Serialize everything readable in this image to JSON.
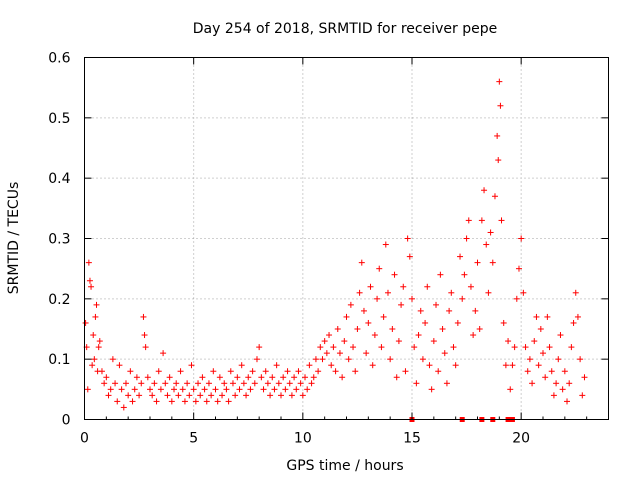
{
  "chart_data": {
    "type": "scatter",
    "title": "Day 254 of 2018, SRMTID for receiver pepe",
    "xlabel": "GPS time / hours",
    "ylabel": "SRMTID / TECUs",
    "xlim": [
      0,
      24
    ],
    "ylim": [
      0,
      0.6
    ],
    "xticks": [
      0,
      5,
      10,
      15,
      20
    ],
    "yticks": [
      0,
      0.1,
      0.2,
      0.3,
      0.4,
      0.5,
      0.6
    ],
    "xtick_labels": [
      "0",
      "5",
      "10",
      "15",
      "20"
    ],
    "ytick_labels": [
      "0",
      "0.1",
      "0.2",
      "0.3",
      "0.4",
      "0.5",
      "0.6"
    ],
    "grid": true,
    "marker": "plus",
    "color": "#ff0000",
    "series": [
      {
        "name": "SRMTID",
        "points": [
          [
            0.05,
            0.16
          ],
          [
            0.1,
            0.12
          ],
          [
            0.15,
            0.05
          ],
          [
            0.2,
            0.26
          ],
          [
            0.25,
            0.23
          ],
          [
            0.3,
            0.22
          ],
          [
            0.35,
            0.09
          ],
          [
            0.4,
            0.14
          ],
          [
            0.45,
            0.1
          ],
          [
            0.5,
            0.17
          ],
          [
            0.55,
            0.19
          ],
          [
            0.6,
            0.08
          ],
          [
            0.65,
            0.12
          ],
          [
            0.7,
            0.13
          ],
          [
            0.8,
            0.08
          ],
          [
            0.9,
            0.06
          ],
          [
            1.0,
            0.07
          ],
          [
            1.1,
            0.04
          ],
          [
            1.2,
            0.05
          ],
          [
            1.3,
            0.1
          ],
          [
            1.4,
            0.06
          ],
          [
            1.5,
            0.03
          ],
          [
            1.6,
            0.09
          ],
          [
            1.7,
            0.05
          ],
          [
            1.8,
            0.02
          ],
          [
            1.9,
            0.06
          ],
          [
            2.0,
            0.04
          ],
          [
            2.1,
            0.08
          ],
          [
            2.2,
            0.03
          ],
          [
            2.3,
            0.05
          ],
          [
            2.4,
            0.07
          ],
          [
            2.5,
            0.04
          ],
          [
            2.6,
            0.06
          ],
          [
            2.7,
            0.17
          ],
          [
            2.75,
            0.14
          ],
          [
            2.8,
            0.12
          ],
          [
            2.9,
            0.07
          ],
          [
            3.0,
            0.05
          ],
          [
            3.1,
            0.04
          ],
          [
            3.2,
            0.06
          ],
          [
            3.3,
            0.03
          ],
          [
            3.4,
            0.08
          ],
          [
            3.5,
            0.05
          ],
          [
            3.6,
            0.11
          ],
          [
            3.7,
            0.06
          ],
          [
            3.8,
            0.04
          ],
          [
            3.9,
            0.07
          ],
          [
            4.0,
            0.03
          ],
          [
            4.1,
            0.05
          ],
          [
            4.2,
            0.06
          ],
          [
            4.3,
            0.04
          ],
          [
            4.4,
            0.08
          ],
          [
            4.5,
            0.05
          ],
          [
            4.6,
            0.03
          ],
          [
            4.7,
            0.06
          ],
          [
            4.8,
            0.04
          ],
          [
            4.9,
            0.09
          ],
          [
            5.0,
            0.05
          ],
          [
            5.1,
            0.03
          ],
          [
            5.2,
            0.06
          ],
          [
            5.3,
            0.04
          ],
          [
            5.4,
            0.07
          ],
          [
            5.5,
            0.05
          ],
          [
            5.6,
            0.03
          ],
          [
            5.7,
            0.06
          ],
          [
            5.8,
            0.04
          ],
          [
            5.9,
            0.08
          ],
          [
            6.0,
            0.05
          ],
          [
            6.1,
            0.03
          ],
          [
            6.2,
            0.07
          ],
          [
            6.3,
            0.04
          ],
          [
            6.4,
            0.06
          ],
          [
            6.5,
            0.05
          ],
          [
            6.6,
            0.03
          ],
          [
            6.7,
            0.08
          ],
          [
            6.8,
            0.06
          ],
          [
            6.9,
            0.04
          ],
          [
            7.0,
            0.07
          ],
          [
            7.1,
            0.05
          ],
          [
            7.2,
            0.09
          ],
          [
            7.3,
            0.06
          ],
          [
            7.4,
            0.04
          ],
          [
            7.5,
            0.07
          ],
          [
            7.6,
            0.05
          ],
          [
            7.7,
            0.08
          ],
          [
            7.8,
            0.06
          ],
          [
            7.9,
            0.1
          ],
          [
            8.0,
            0.12
          ],
          [
            8.1,
            0.07
          ],
          [
            8.2,
            0.05
          ],
          [
            8.3,
            0.08
          ],
          [
            8.4,
            0.06
          ],
          [
            8.5,
            0.04
          ],
          [
            8.6,
            0.07
          ],
          [
            8.7,
            0.05
          ],
          [
            8.8,
            0.09
          ],
          [
            8.9,
            0.06
          ],
          [
            9.0,
            0.04
          ],
          [
            9.1,
            0.07
          ],
          [
            9.2,
            0.05
          ],
          [
            9.3,
            0.08
          ],
          [
            9.4,
            0.06
          ],
          [
            9.5,
            0.04
          ],
          [
            9.6,
            0.07
          ],
          [
            9.7,
            0.05
          ],
          [
            9.8,
            0.08
          ],
          [
            9.9,
            0.06
          ],
          [
            10.0,
            0.04
          ],
          [
            10.1,
            0.07
          ],
          [
            10.2,
            0.05
          ],
          [
            10.3,
            0.09
          ],
          [
            10.4,
            0.06
          ],
          [
            10.5,
            0.07
          ],
          [
            10.6,
            0.1
          ],
          [
            10.7,
            0.08
          ],
          [
            10.8,
            0.12
          ],
          [
            10.9,
            0.1
          ],
          [
            11.0,
            0.13
          ],
          [
            11.1,
            0.11
          ],
          [
            11.2,
            0.14
          ],
          [
            11.3,
            0.09
          ],
          [
            11.4,
            0.12
          ],
          [
            11.5,
            0.08
          ],
          [
            11.6,
            0.15
          ],
          [
            11.7,
            0.11
          ],
          [
            11.8,
            0.07
          ],
          [
            11.9,
            0.13
          ],
          [
            12.0,
            0.17
          ],
          [
            12.1,
            0.1
          ],
          [
            12.2,
            0.19
          ],
          [
            12.3,
            0.12
          ],
          [
            12.4,
            0.08
          ],
          [
            12.5,
            0.15
          ],
          [
            12.6,
            0.21
          ],
          [
            12.7,
            0.26
          ],
          [
            12.8,
            0.18
          ],
          [
            12.9,
            0.11
          ],
          [
            13.0,
            0.16
          ],
          [
            13.1,
            0.22
          ],
          [
            13.2,
            0.09
          ],
          [
            13.3,
            0.14
          ],
          [
            13.4,
            0.2
          ],
          [
            13.5,
            0.25
          ],
          [
            13.6,
            0.12
          ],
          [
            13.7,
            0.17
          ],
          [
            13.8,
            0.29
          ],
          [
            13.9,
            0.21
          ],
          [
            14.0,
            0.1
          ],
          [
            14.1,
            0.15
          ],
          [
            14.2,
            0.24
          ],
          [
            14.3,
            0.07
          ],
          [
            14.4,
            0.13
          ],
          [
            14.5,
            0.19
          ],
          [
            14.6,
            0.22
          ],
          [
            14.7,
            0.08
          ],
          [
            14.8,
            0.3
          ],
          [
            14.9,
            0.27
          ],
          [
            15.0,
            0.2
          ],
          [
            15.1,
            0.12
          ],
          [
            15.2,
            0.06
          ],
          [
            15.3,
            0.14
          ],
          [
            15.4,
            0.18
          ],
          [
            15.5,
            0.1
          ],
          [
            15.6,
            0.16
          ],
          [
            15.7,
            0.22
          ],
          [
            15.8,
            0.09
          ],
          [
            15.9,
            0.05
          ],
          [
            16.0,
            0.13
          ],
          [
            16.1,
            0.19
          ],
          [
            16.2,
            0.08
          ],
          [
            16.3,
            0.24
          ],
          [
            16.4,
            0.15
          ],
          [
            16.5,
            0.11
          ],
          [
            16.6,
            0.06
          ],
          [
            16.7,
            0.18
          ],
          [
            16.8,
            0.21
          ],
          [
            16.9,
            0.12
          ],
          [
            17.0,
            0.09
          ],
          [
            17.1,
            0.16
          ],
          [
            17.2,
            0.27
          ],
          [
            17.3,
            0.2
          ],
          [
            17.4,
            0.24
          ],
          [
            17.5,
            0.3
          ],
          [
            17.6,
            0.33
          ],
          [
            17.7,
            0.22
          ],
          [
            17.8,
            0.14
          ],
          [
            17.9,
            0.18
          ],
          [
            18.0,
            0.26
          ],
          [
            18.1,
            0.15
          ],
          [
            18.2,
            0.33
          ],
          [
            18.3,
            0.38
          ],
          [
            18.4,
            0.29
          ],
          [
            18.5,
            0.21
          ],
          [
            18.6,
            0.31
          ],
          [
            18.7,
            0.26
          ],
          [
            18.8,
            0.37
          ],
          [
            18.9,
            0.47
          ],
          [
            18.95,
            0.43
          ],
          [
            19.0,
            0.56
          ],
          [
            19.05,
            0.52
          ],
          [
            19.1,
            0.33
          ],
          [
            19.2,
            0.16
          ],
          [
            19.3,
            0.09
          ],
          [
            19.4,
            0.13
          ],
          [
            19.5,
            0.05
          ],
          [
            19.6,
            0.09
          ],
          [
            19.7,
            0.12
          ],
          [
            19.8,
            0.2
          ],
          [
            19.9,
            0.25
          ],
          [
            20.0,
            0.3
          ],
          [
            20.1,
            0.21
          ],
          [
            20.2,
            0.12
          ],
          [
            20.3,
            0.08
          ],
          [
            20.4,
            0.1
          ],
          [
            20.5,
            0.06
          ],
          [
            20.6,
            0.13
          ],
          [
            20.7,
            0.17
          ],
          [
            20.8,
            0.09
          ],
          [
            20.9,
            0.15
          ],
          [
            21.0,
            0.11
          ],
          [
            21.1,
            0.07
          ],
          [
            21.2,
            0.17
          ],
          [
            21.3,
            0.12
          ],
          [
            21.4,
            0.08
          ],
          [
            21.5,
            0.04
          ],
          [
            21.6,
            0.06
          ],
          [
            21.7,
            0.1
          ],
          [
            21.8,
            0.14
          ],
          [
            21.9,
            0.05
          ],
          [
            22.0,
            0.08
          ],
          [
            22.1,
            0.03
          ],
          [
            22.2,
            0.06
          ],
          [
            22.3,
            0.12
          ],
          [
            22.4,
            0.16
          ],
          [
            22.5,
            0.21
          ],
          [
            22.6,
            0.17
          ],
          [
            22.7,
            0.1
          ],
          [
            22.8,
            0.04
          ],
          [
            22.9,
            0.07
          ]
        ]
      }
    ],
    "zero_markers": [
      15.0,
      17.3,
      18.2,
      18.7,
      19.4,
      19.6
    ]
  }
}
